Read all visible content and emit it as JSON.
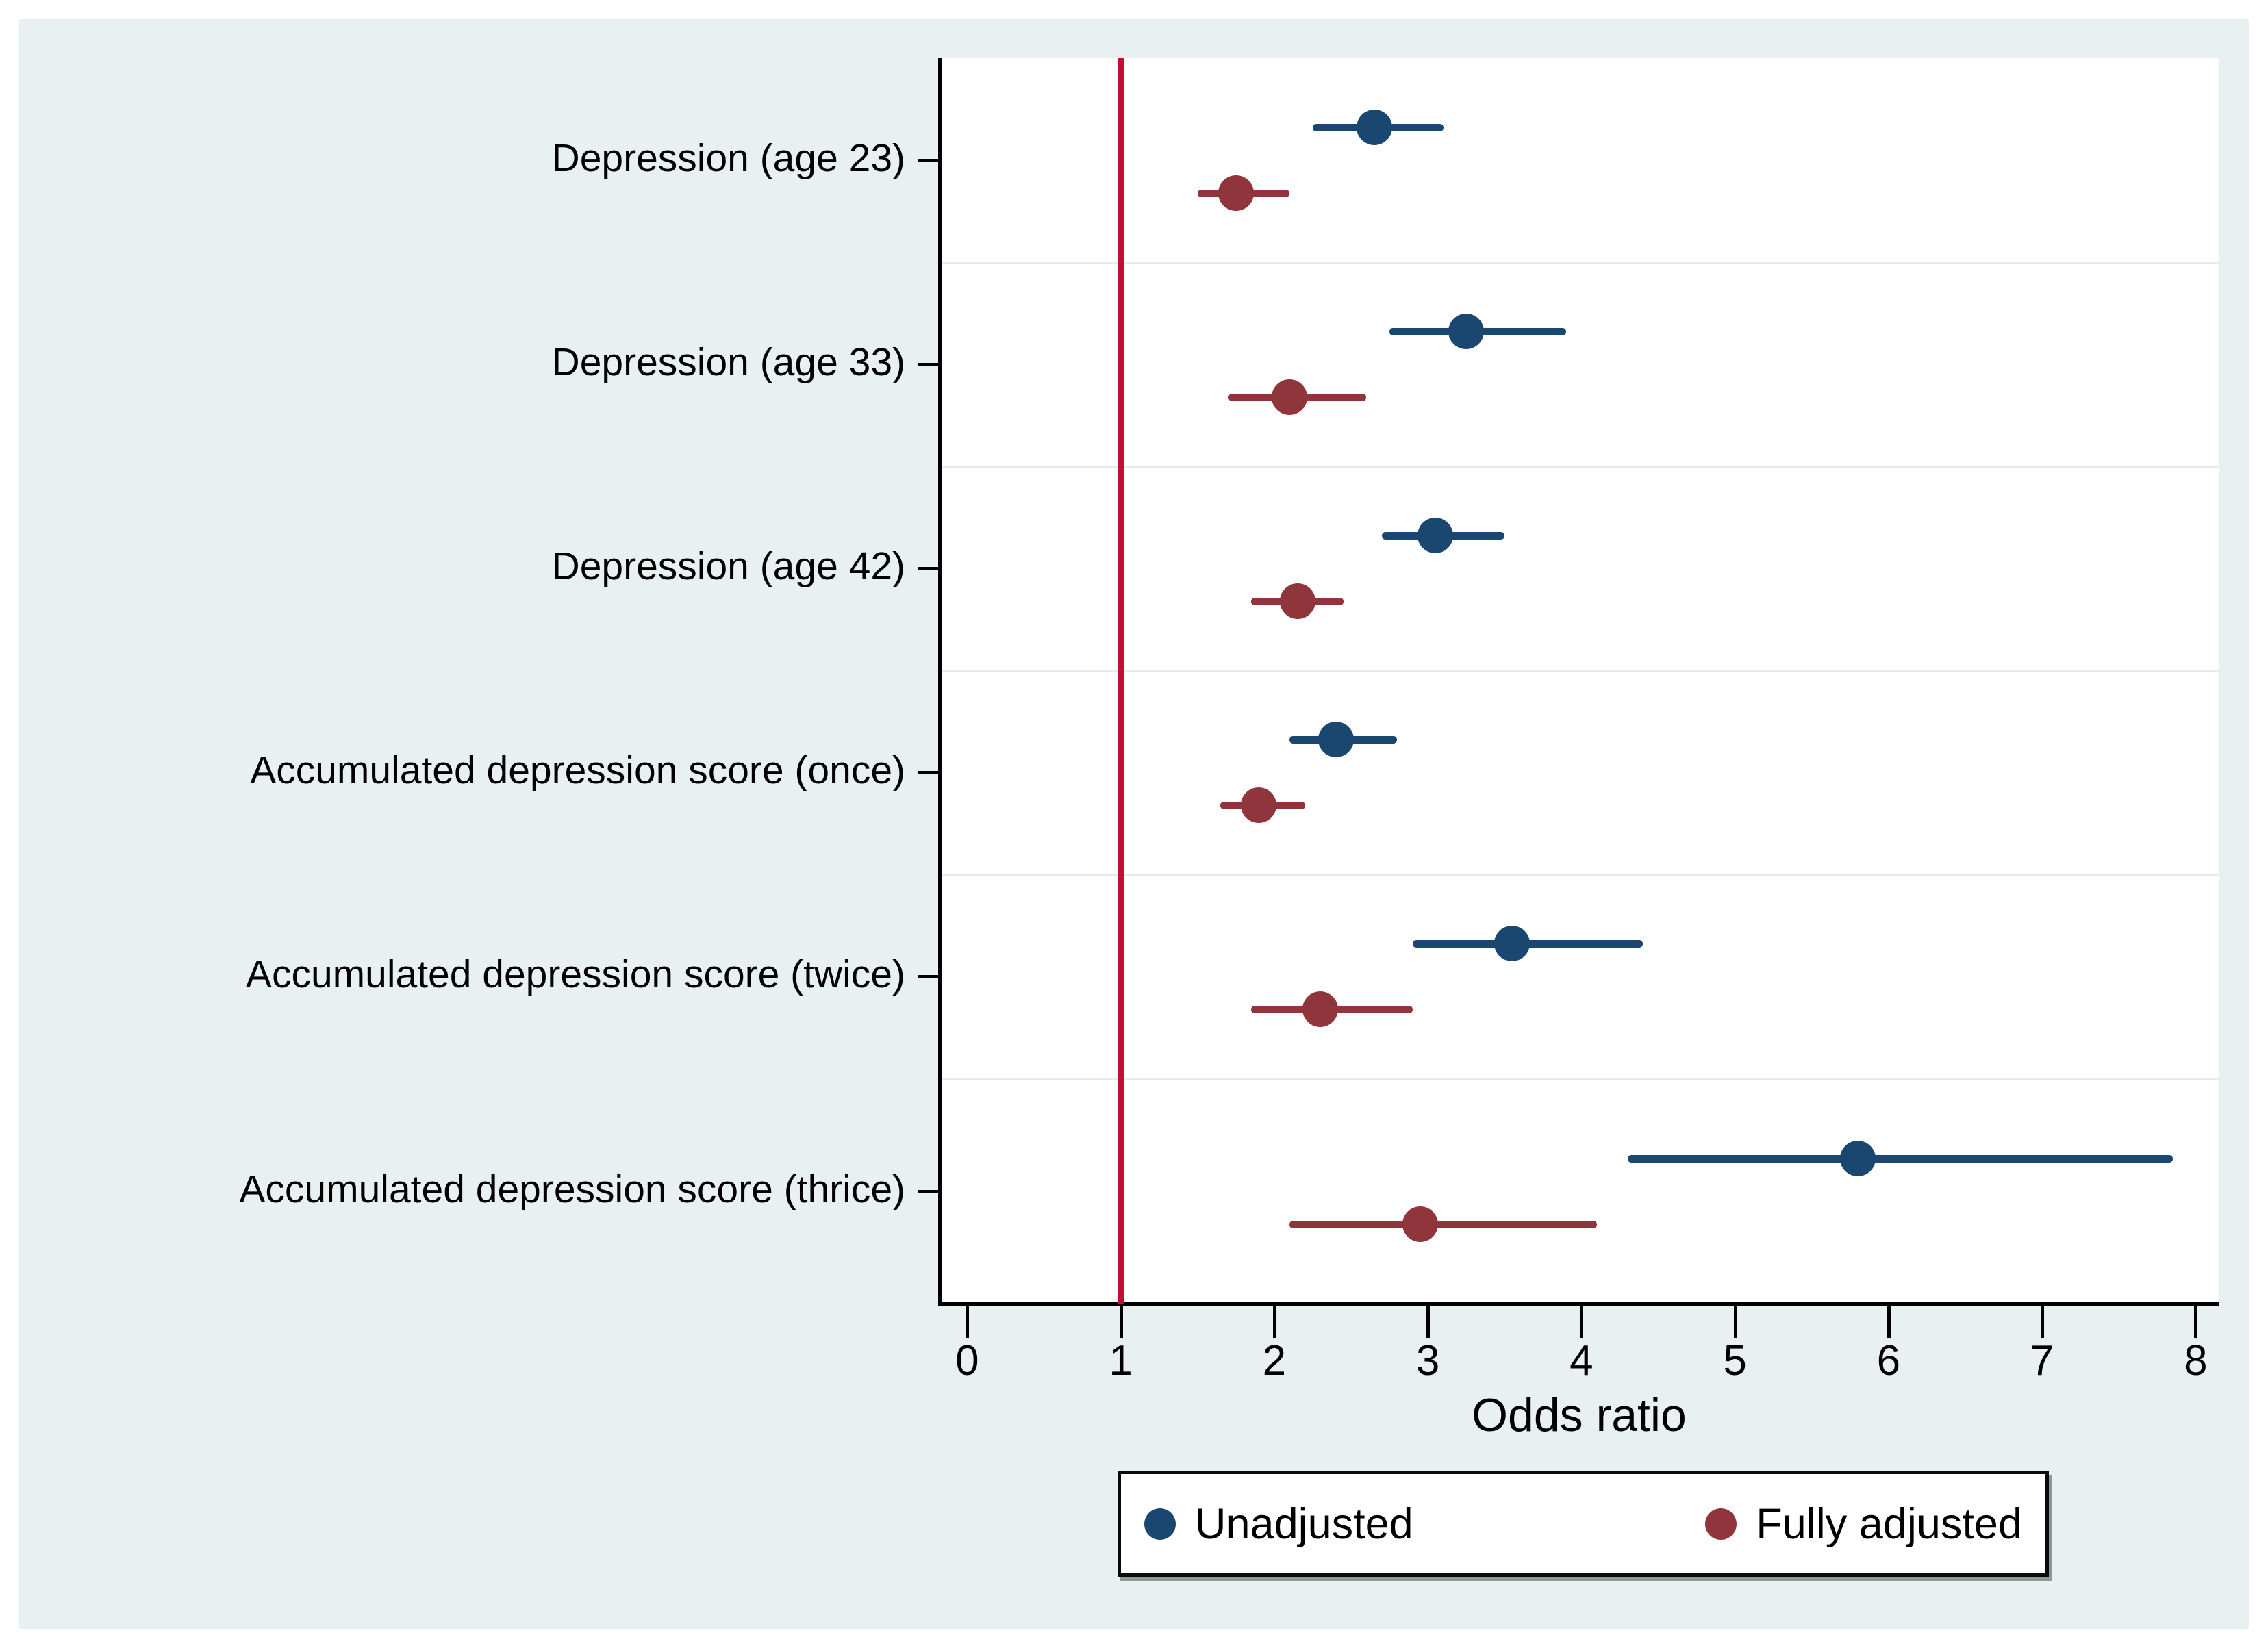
{
  "colors": {
    "figure_background": "#e9f0f2",
    "plot_background": "#ffffff",
    "axis_color": "#000000",
    "separator_gridline": "#e3edf0",
    "reference_line": "#c40f35",
    "unadjusted_navy": "#1a476f",
    "fully_adjusted_maroon": "#90353b",
    "text_color": "#000000",
    "legend_border": "#0a0a0a"
  },
  "chart_data": {
    "type": "scatter",
    "subtype": "forest-plot-odds-ratios-with-95ci",
    "title": "",
    "xlabel": "Odds ratio",
    "ylabel": "",
    "xlim": [
      -0.18,
      8.15
    ],
    "x_ticks": [
      0,
      1,
      2,
      3,
      4,
      5,
      6,
      7,
      8
    ],
    "reference_line_x": 1,
    "grid": "light horizontal separators between category bands",
    "legend_position": "bottom-center",
    "categories": [
      "Depression (age 23)",
      "Depression (age 33)",
      "Depression (age 42)",
      "Accumulated depression score (once)",
      "Accumulated depression score (twice)",
      "Accumulated depression score (thrice)"
    ],
    "series": [
      {
        "name": "Unadjusted",
        "color": "#1a476f",
        "points": [
          {
            "or": 2.65,
            "lo": 2.25,
            "hi": 3.1
          },
          {
            "or": 3.25,
            "lo": 2.75,
            "hi": 3.9
          },
          {
            "or": 3.05,
            "lo": 2.7,
            "hi": 3.5
          },
          {
            "or": 2.4,
            "lo": 2.1,
            "hi": 2.8
          },
          {
            "or": 3.55,
            "lo": 2.9,
            "hi": 4.4
          },
          {
            "or": 5.8,
            "lo": 4.3,
            "hi": 7.85
          }
        ]
      },
      {
        "name": "Fully adjusted",
        "color": "#90353b",
        "points": [
          {
            "or": 1.75,
            "lo": 1.5,
            "hi": 2.1
          },
          {
            "or": 2.1,
            "lo": 1.7,
            "hi": 2.6
          },
          {
            "or": 2.15,
            "lo": 1.85,
            "hi": 2.45
          },
          {
            "or": 1.9,
            "lo": 1.65,
            "hi": 2.2
          },
          {
            "or": 2.3,
            "lo": 1.85,
            "hi": 2.9
          },
          {
            "or": 2.95,
            "lo": 2.1,
            "hi": 4.1
          }
        ]
      }
    ]
  }
}
